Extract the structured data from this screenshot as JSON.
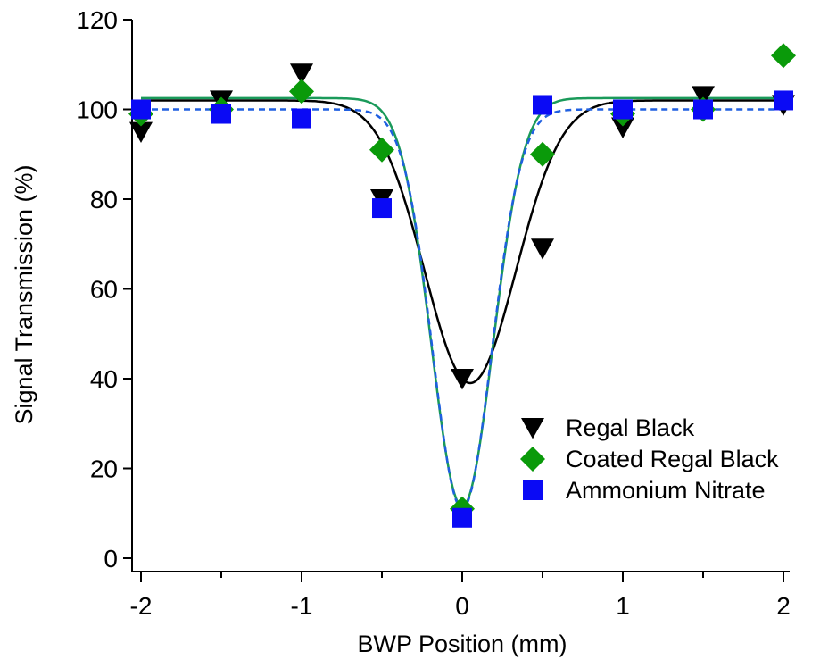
{
  "chart_data": {
    "type": "scatter",
    "title": "",
    "xlabel": "BWP Position (mm)",
    "ylabel": "Signal Transmission (%)",
    "xlim": [
      -2.1,
      2.1
    ],
    "ylim": [
      -3,
      120
    ],
    "xticks": [
      "-2",
      "-1",
      "0",
      "1",
      "2"
    ],
    "yticks": [
      "0",
      "20",
      "40",
      "60",
      "80",
      "100",
      "120"
    ],
    "grid": false,
    "legend_position": "bottom-right",
    "series": [
      {
        "name": "Regal Black",
        "marker": "triangle-down",
        "color": "#000000",
        "x": [
          -2,
          -1.5,
          -1,
          -0.5,
          0,
          0.5,
          1,
          1.5,
          2
        ],
        "y": [
          95,
          102,
          108,
          80,
          40,
          69,
          96,
          103,
          101
        ]
      },
      {
        "name": "Coated Regal Black",
        "marker": "diamond",
        "color": "#0a9a0a",
        "x": [
          -2,
          -1.5,
          -1,
          -0.5,
          0,
          0.5,
          1,
          1.5,
          2
        ],
        "y": [
          99,
          100,
          104,
          91,
          11,
          90,
          99,
          100,
          112
        ]
      },
      {
        "name": "Ammonium Nitrate",
        "marker": "square",
        "color": "#0a0af5",
        "x": [
          -2,
          -1.5,
          -1,
          -0.5,
          0,
          0.5,
          1,
          1.5,
          2
        ],
        "y": [
          100,
          99,
          98,
          78,
          9,
          101,
          100,
          100,
          102
        ]
      }
    ],
    "fits": [
      {
        "series": "Regal Black",
        "color": "#000000",
        "dash": "solid",
        "baseline": 102,
        "depth": 63,
        "center": 0.05,
        "width": 0.4
      },
      {
        "series": "Coated Regal Black",
        "color": "#1a9a5a",
        "dash": "solid",
        "baseline": 102.5,
        "depth": 91,
        "center": 0,
        "width": 0.27
      },
      {
        "series": "Ammonium Nitrate",
        "color": "#1f5fe0",
        "dash": "dashed",
        "baseline": 100,
        "depth": 89,
        "center": 0,
        "width": 0.26
      }
    ]
  }
}
